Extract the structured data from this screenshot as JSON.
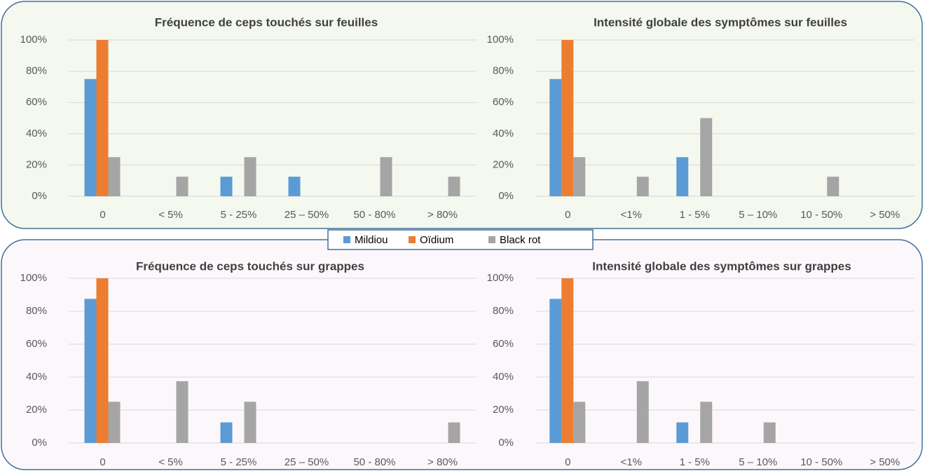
{
  "chart_data": [
    {
      "type": "bar",
      "title": "Fréquence de ceps touchés sur feuilles",
      "categories": [
        "0",
        "< 5%",
        "5 - 25%",
        "25 – 50%",
        "50 - 80%",
        "> 80%"
      ],
      "series": [
        {
          "name": "Mildiou",
          "color": "#5b9bd5",
          "values": [
            75,
            0,
            12.5,
            12.5,
            0,
            0
          ]
        },
        {
          "name": "Oïdium",
          "color": "#ed7d31",
          "values": [
            100,
            0,
            0,
            0,
            0,
            0
          ]
        },
        {
          "name": "Black rot",
          "color": "#a5a5a5",
          "values": [
            25,
            12.5,
            25,
            0,
            25,
            12.5
          ]
        }
      ],
      "ylim": [
        0,
        100
      ],
      "yticks": [
        {
          "value": 0,
          "label": "0%"
        },
        {
          "value": 20,
          "label": "20%"
        },
        {
          "value": 40,
          "label": "40%"
        },
        {
          "value": 60,
          "label": "60%"
        },
        {
          "value": 80,
          "label": "80%"
        },
        {
          "value": 100,
          "label": "100%"
        }
      ],
      "grid": true
    },
    {
      "type": "bar",
      "title": "Intensité globale des symptômes sur feuilles",
      "categories": [
        "0",
        "<1%",
        "1 - 5%",
        "5 – 10%",
        "10 - 50%",
        "> 50%"
      ],
      "series": [
        {
          "name": "Mildiou",
          "color": "#5b9bd5",
          "values": [
            75,
            0,
            25,
            0,
            0,
            0
          ]
        },
        {
          "name": "Oïdium",
          "color": "#ed7d31",
          "values": [
            100,
            0,
            0,
            0,
            0,
            0
          ]
        },
        {
          "name": "Black rot",
          "color": "#a5a5a5",
          "values": [
            25,
            12.5,
            50,
            0,
            12.5,
            0
          ]
        }
      ],
      "ylim": [
        0,
        100
      ],
      "yticks": [
        {
          "value": 0,
          "label": "0%"
        },
        {
          "value": 20,
          "label": "20%"
        },
        {
          "value": 40,
          "label": "40%"
        },
        {
          "value": 60,
          "label": "60%"
        },
        {
          "value": 80,
          "label": "80%"
        },
        {
          "value": 100,
          "label": "100%"
        }
      ],
      "grid": true
    },
    {
      "type": "bar",
      "title": "Fréquence de ceps touchés sur grappes",
      "categories": [
        "0",
        "< 5%",
        "5 - 25%",
        "25 – 50%",
        "50 - 80%",
        "> 80%"
      ],
      "series": [
        {
          "name": "Mildiou",
          "color": "#5b9bd5",
          "values": [
            87.5,
            0,
            12.5,
            0,
            0,
            0
          ]
        },
        {
          "name": "Oïdium",
          "color": "#ed7d31",
          "values": [
            100,
            0,
            0,
            0,
            0,
            0
          ]
        },
        {
          "name": "Black rot",
          "color": "#a5a5a5",
          "values": [
            25,
            37.5,
            25,
            0,
            0,
            12.5
          ]
        }
      ],
      "ylim": [
        0,
        100
      ],
      "yticks": [
        {
          "value": 0,
          "label": "0%"
        },
        {
          "value": 20,
          "label": "20%"
        },
        {
          "value": 40,
          "label": "40%"
        },
        {
          "value": 60,
          "label": "60%"
        },
        {
          "value": 80,
          "label": "80%"
        },
        {
          "value": 100,
          "label": "100%"
        }
      ],
      "grid": true
    },
    {
      "type": "bar",
      "title": "Intensité globale des symptômes sur grappes",
      "categories": [
        "0",
        "<1%",
        "1 - 5%",
        "5 – 10%",
        "10 - 50%",
        "> 50%"
      ],
      "series": [
        {
          "name": "Mildiou",
          "color": "#5b9bd5",
          "values": [
            87.5,
            0,
            12.5,
            0,
            0,
            0
          ]
        },
        {
          "name": "Oïdium",
          "color": "#ed7d31",
          "values": [
            100,
            0,
            0,
            0,
            0,
            0
          ]
        },
        {
          "name": "Black rot",
          "color": "#a5a5a5",
          "values": [
            25,
            37.5,
            25,
            12.5,
            0,
            0
          ]
        }
      ],
      "ylim": [
        0,
        100
      ],
      "yticks": [
        {
          "value": 0,
          "label": "0%"
        },
        {
          "value": 20,
          "label": "20%"
        },
        {
          "value": 40,
          "label": "40%"
        },
        {
          "value": 60,
          "label": "60%"
        },
        {
          "value": 80,
          "label": "80%"
        },
        {
          "value": 100,
          "label": "100%"
        }
      ],
      "grid": true
    }
  ]
}
